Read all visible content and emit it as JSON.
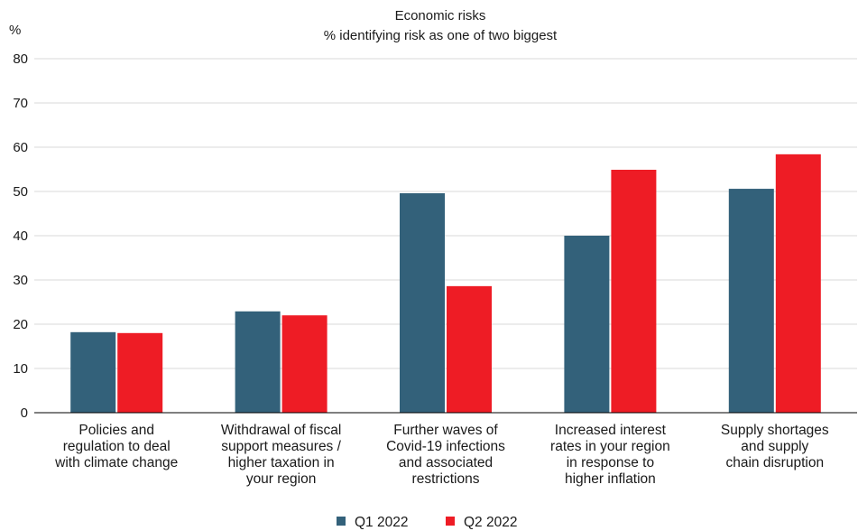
{
  "chart_data": {
    "type": "bar",
    "title": "Economic risks",
    "subtitle": "% identifying risk as one of two biggest",
    "ylabel": "%",
    "ylim": [
      0,
      80
    ],
    "yticks": [
      "0",
      "10",
      "20",
      "30",
      "40",
      "50",
      "60",
      "70",
      "80"
    ],
    "grid": true,
    "legend_position": "bottom",
    "categories": [
      [
        "Policies and",
        "regulation to deal",
        "with climate change"
      ],
      [
        "Withdrawal of fiscal",
        "support measures /",
        "higher taxation in",
        "your region"
      ],
      [
        "Further waves of",
        "Covid-19 infections",
        "and associated",
        "restrictions"
      ],
      [
        "Increased interest",
        "rates in your region",
        "in response to",
        "higher inflation"
      ],
      [
        "Supply shortages",
        "and supply",
        "chain disruption"
      ]
    ],
    "series": [
      {
        "name": "Q1 2022",
        "color": "#33617a",
        "values": [
          18.2,
          22.9,
          49.6,
          40.0,
          50.6
        ]
      },
      {
        "name": "Q2 2022",
        "color": "#ee1c25",
        "values": [
          18.0,
          22.0,
          28.6,
          54.9,
          58.4
        ]
      }
    ]
  }
}
